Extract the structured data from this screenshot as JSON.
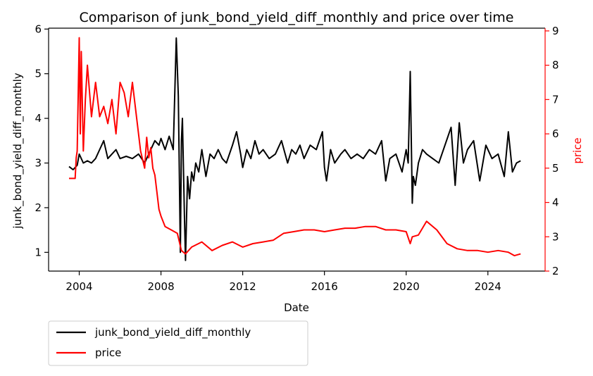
{
  "chart_data": {
    "type": "line",
    "title": "Comparison of junk_bond_yield_diff_monthly and price over time",
    "xlabel": "Date",
    "ylabel_left": "junk_bond_yield_diff_monthly",
    "ylabel_right": "price",
    "x_ticks": [
      "2004",
      "2008",
      "2012",
      "2016",
      "2020",
      "2024"
    ],
    "x_tick_years": [
      2004,
      2008,
      2012,
      2016,
      2020,
      2024
    ],
    "xlim": [
      2002.5,
      2026.8
    ],
    "ylim_left": [
      0.58,
      6.02
    ],
    "ylim_right": [
      2.0,
      9.08
    ],
    "y_ticks_left": [
      1,
      2,
      3,
      4,
      5,
      6
    ],
    "y_ticks_right": [
      2,
      3,
      4,
      5,
      6,
      7,
      8,
      9
    ],
    "colors": {
      "junk_bond_yield_diff_monthly": "#000000",
      "price": "#ff0000"
    },
    "legend_position": "below-left",
    "grid": false,
    "series": [
      {
        "name": "junk_bond_yield_diff_monthly",
        "axis": "left",
        "color": "#000000",
        "x": [
          2003.5,
          2003.7,
          2003.9,
          2004.0,
          2004.2,
          2004.4,
          2004.6,
          2004.8,
          2005.0,
          2005.2,
          2005.4,
          2005.6,
          2005.8,
          2006.0,
          2006.3,
          2006.6,
          2006.9,
          2007.2,
          2007.5,
          2007.7,
          2007.9,
          2008.0,
          2008.2,
          2008.4,
          2008.6,
          2008.75,
          2008.85,
          2008.95,
          2009.0,
          2009.05,
          2009.15,
          2009.2,
          2009.3,
          2009.4,
          2009.5,
          2009.6,
          2009.7,
          2009.85,
          2010.0,
          2010.2,
          2010.4,
          2010.6,
          2010.8,
          2011.0,
          2011.2,
          2011.5,
          2011.7,
          2011.9,
          2012.0,
          2012.2,
          2012.4,
          2012.6,
          2012.8,
          2013.0,
          2013.3,
          2013.6,
          2013.9,
          2014.2,
          2014.4,
          2014.6,
          2014.8,
          2015.0,
          2015.3,
          2015.6,
          2015.9,
          2016.0,
          2016.1,
          2016.3,
          2016.5,
          2016.8,
          2017.0,
          2017.3,
          2017.6,
          2017.9,
          2018.2,
          2018.5,
          2018.8,
          2019.0,
          2019.2,
          2019.5,
          2019.8,
          2020.0,
          2020.1,
          2020.2,
          2020.25,
          2020.3,
          2020.35,
          2020.45,
          2020.6,
          2020.8,
          2021.0,
          2021.3,
          2021.6,
          2021.9,
          2022.2,
          2022.4,
          2022.6,
          2022.8,
          2023.0,
          2023.3,
          2023.6,
          2023.9,
          2024.2,
          2024.5,
          2024.8,
          2025.0,
          2025.2,
          2025.4,
          2025.6
        ],
        "values": [
          2.92,
          2.85,
          2.95,
          3.2,
          3.0,
          3.05,
          3.0,
          3.1,
          3.3,
          3.5,
          3.1,
          3.2,
          3.3,
          3.1,
          3.15,
          3.1,
          3.2,
          3.0,
          3.3,
          3.5,
          3.4,
          3.55,
          3.3,
          3.6,
          3.3,
          5.8,
          4.5,
          1.0,
          3.5,
          4.0,
          1.8,
          0.82,
          2.7,
          2.2,
          2.8,
          2.6,
          3.0,
          2.8,
          3.3,
          2.7,
          3.2,
          3.1,
          3.3,
          3.1,
          3.0,
          3.4,
          3.7,
          3.2,
          2.9,
          3.3,
          3.1,
          3.5,
          3.2,
          3.3,
          3.1,
          3.2,
          3.5,
          3.0,
          3.3,
          3.2,
          3.4,
          3.1,
          3.4,
          3.3,
          3.7,
          2.9,
          2.6,
          3.3,
          3.0,
          3.2,
          3.3,
          3.1,
          3.2,
          3.1,
          3.3,
          3.2,
          3.5,
          2.6,
          3.1,
          3.2,
          2.8,
          3.3,
          3.0,
          5.05,
          3.5,
          2.1,
          2.7,
          2.5,
          3.0,
          3.3,
          3.2,
          3.1,
          3.0,
          3.4,
          3.8,
          2.5,
          3.9,
          3.0,
          3.3,
          3.5,
          2.6,
          3.4,
          3.1,
          3.2,
          2.7,
          3.7,
          2.8,
          3.0,
          3.05
        ]
      },
      {
        "name": "price",
        "axis": "right",
        "color": "#ff0000",
        "x": [
          2003.5,
          2003.8,
          2003.85,
          2003.9,
          2004.0,
          2004.05,
          2004.1,
          2004.2,
          2004.3,
          2004.4,
          2004.6,
          2004.8,
          2005.0,
          2005.2,
          2005.4,
          2005.6,
          2005.8,
          2006.0,
          2006.2,
          2006.4,
          2006.6,
          2006.8,
          2007.0,
          2007.2,
          2007.3,
          2007.4,
          2007.5,
          2007.6,
          2007.7,
          2007.8,
          2007.9,
          2008.0,
          2008.2,
          2008.5,
          2008.8,
          2009.0,
          2009.2,
          2009.5,
          2010.0,
          2010.5,
          2011.0,
          2011.5,
          2012.0,
          2012.5,
          2013.0,
          2013.5,
          2014.0,
          2014.5,
          2015.0,
          2015.5,
          2016.0,
          2016.5,
          2017.0,
          2017.5,
          2018.0,
          2018.5,
          2019.0,
          2019.5,
          2020.0,
          2020.2,
          2020.3,
          2020.6,
          2021.0,
          2021.5,
          2022.0,
          2022.5,
          2023.0,
          2023.5,
          2024.0,
          2024.5,
          2025.0,
          2025.3,
          2025.6
        ],
        "values": [
          4.7,
          4.7,
          5.3,
          5.5,
          8.8,
          6.0,
          8.4,
          5.5,
          7.0,
          8.0,
          6.5,
          7.5,
          6.5,
          6.8,
          6.3,
          7.0,
          6.0,
          7.5,
          7.2,
          6.5,
          7.5,
          6.5,
          5.5,
          5.0,
          5.9,
          5.3,
          5.6,
          5.0,
          4.8,
          4.3,
          3.8,
          3.6,
          3.3,
          3.2,
          3.1,
          2.6,
          2.5,
          2.7,
          2.85,
          2.6,
          2.75,
          2.85,
          2.7,
          2.8,
          2.85,
          2.9,
          3.1,
          3.15,
          3.2,
          3.2,
          3.15,
          3.2,
          3.25,
          3.25,
          3.3,
          3.3,
          3.2,
          3.2,
          3.15,
          2.8,
          3.0,
          3.05,
          3.45,
          3.2,
          2.8,
          2.65,
          2.6,
          2.6,
          2.55,
          2.6,
          2.55,
          2.45,
          2.5
        ]
      }
    ]
  }
}
